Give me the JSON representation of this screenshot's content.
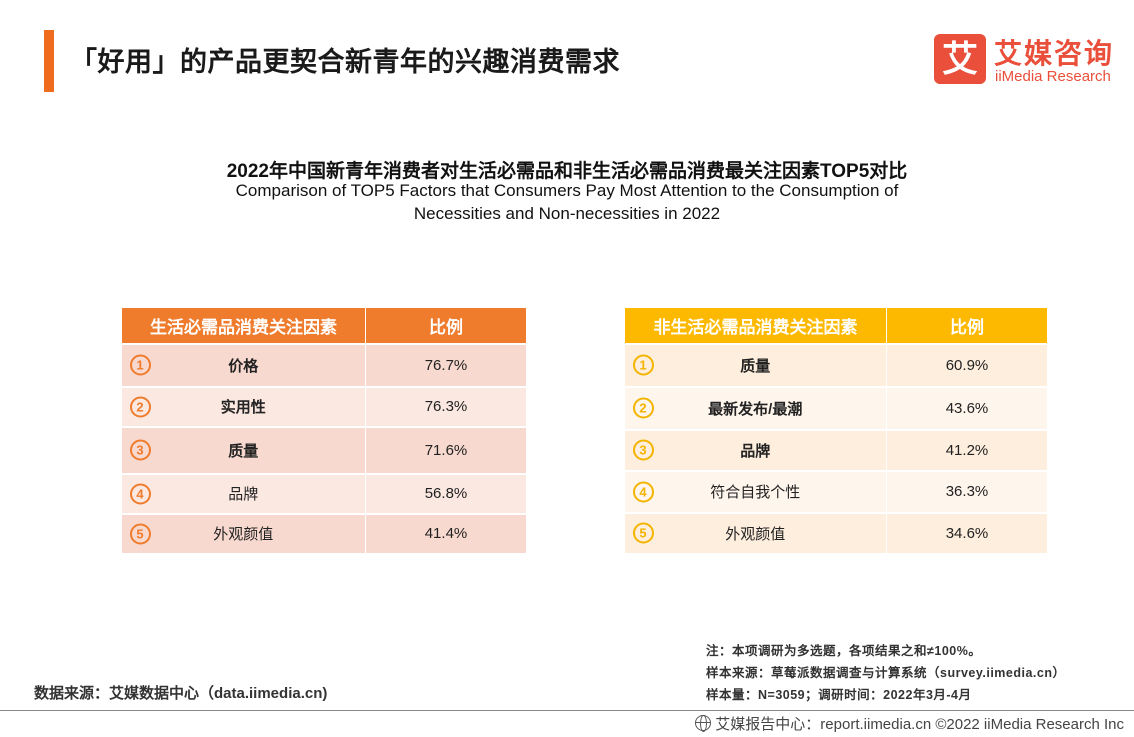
{
  "page": {
    "title": "「好用」的产品更契合新青年的兴趣消费需求",
    "accent_color": "#ef6c1f"
  },
  "logo": {
    "mark": "艾",
    "name_cn": "艾媒咨询",
    "name_en": "iiMedia Research",
    "color": "#e94f3a"
  },
  "heading": {
    "cn": "2022年中国新青年消费者对生活必需品和非生活必需品消费最关注因素TOP5对比",
    "en_line1": "Comparison of TOP5 Factors that Consumers Pay Most Attention to the Consumption of",
    "en_line2": "Necessities and Non-necessities in 2022"
  },
  "left_table": {
    "header_factor": "生活必需品消费关注因素",
    "header_ratio": "比例",
    "header_color": "#ef7b2c",
    "rows": [
      {
        "rank": "1",
        "factor": "价格",
        "ratio": "76.7%"
      },
      {
        "rank": "2",
        "factor": "实用性",
        "ratio": "76.3%"
      },
      {
        "rank": "3",
        "factor": "质量",
        "ratio": "71.6%"
      },
      {
        "rank": "4",
        "factor": "品牌",
        "ratio": "56.8%"
      },
      {
        "rank": "5",
        "factor": "外观颜值",
        "ratio": "41.4%"
      }
    ]
  },
  "right_table": {
    "header_factor": "非生活必需品消费关注因素",
    "header_ratio": "比例",
    "header_color": "#fdb900",
    "rows": [
      {
        "rank": "1",
        "factor": "质量",
        "ratio": "60.9%"
      },
      {
        "rank": "2",
        "factor": "最新发布/最潮",
        "ratio": "43.6%"
      },
      {
        "rank": "3",
        "factor": "品牌",
        "ratio": "41.2%"
      },
      {
        "rank": "4",
        "factor": "符合自我个性",
        "ratio": "36.3%"
      },
      {
        "rank": "5",
        "factor": "外观颜值",
        "ratio": "34.6%"
      }
    ]
  },
  "source": {
    "data_source": "数据来源：艾媒数据中心（data.iimedia.cn)",
    "note": "注：本项调研为多选题，各项结果之和≠100%。",
    "sample_source": "样本来源：草莓派数据调查与计算系统（survey.iimedia.cn）",
    "sample_size": "样本量：N=3059；调研时间：2022年3月-4月"
  },
  "footer": {
    "text": "艾媒报告中心：report.iimedia.cn  ©2022  iiMedia Research  Inc"
  }
}
